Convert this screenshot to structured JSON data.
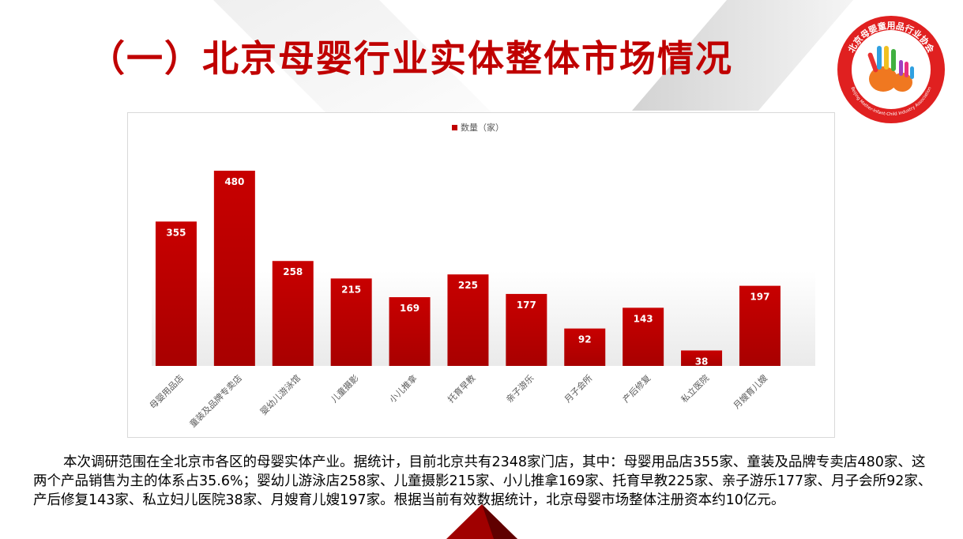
{
  "title": "（一）北京母婴行业实体整体市场情况",
  "logo": {
    "arc_text": "北京母婴童用品行业协会",
    "english_text": "Beijing Mother-Infant-Child Industry Association"
  },
  "colors": {
    "accent": "#c00000",
    "bar": "#c00000"
  },
  "chart_data": {
    "type": "bar",
    "categories": [
      "母婴用品店",
      "童装及品牌专卖店",
      "婴幼儿游泳馆",
      "儿童摄影",
      "小儿推拿",
      "托育早教",
      "亲子游乐",
      "月子会所",
      "产后修复",
      "私立医院",
      "月嫂育儿嫂"
    ],
    "series": [
      {
        "name": "数量（家）",
        "values": [
          355,
          480,
          258,
          215,
          169,
          225,
          177,
          92,
          143,
          38,
          197
        ]
      }
    ],
    "data_labels": true,
    "legend_position": "top",
    "grid": false,
    "ylim": [
      0,
      500
    ]
  },
  "description": "本次调研范围在全北京市各区的母婴实体产业。据统计，目前北京共有2348家门店，其中：母婴用品店355家、童装及品牌专卖店480家、这两个产品销售为主的体系占35.6%；婴幼儿游泳店258家、儿童摄影215家、小儿推拿169家、托育早教225家、亲子游乐177家、月子会所92家、产后修复143家、私立妇儿医院38家、月嫂育儿嫂197家。根据当前有效数据统计，北京母婴市场整体注册资本约10亿元。"
}
